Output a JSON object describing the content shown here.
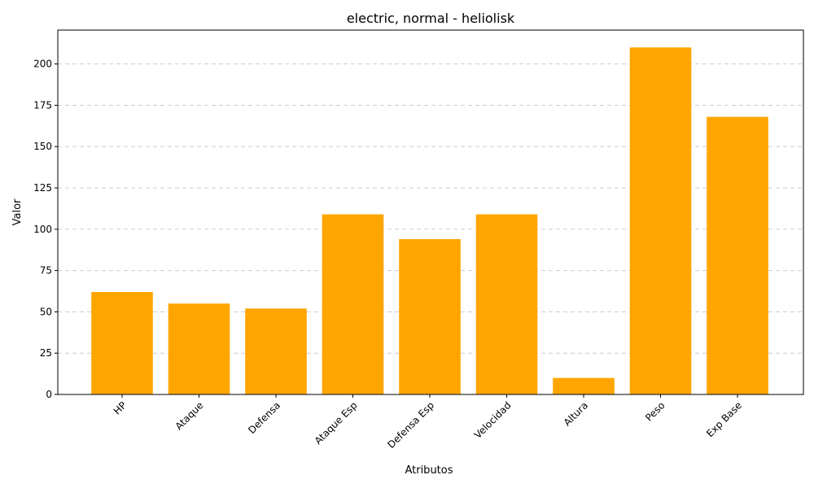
{
  "chart_data": {
    "type": "bar",
    "title": "electric, normal - heliolisk",
    "xlabel": "Atributos",
    "ylabel": "Valor",
    "categories": [
      "HP",
      "Ataque",
      "Defensa",
      "Ataque Esp",
      "Defensa Esp",
      "Velocidad",
      "Altura",
      "Peso",
      "Exp Base"
    ],
    "values": [
      62,
      55,
      52,
      109,
      94,
      109,
      10,
      210,
      168
    ],
    "ylim": [
      0,
      220.5
    ],
    "yticks": [
      0,
      25,
      50,
      75,
      100,
      125,
      150,
      175,
      200
    ],
    "bar_color": "#FFA500",
    "grid": "y-axis dashed",
    "legend": "none"
  }
}
